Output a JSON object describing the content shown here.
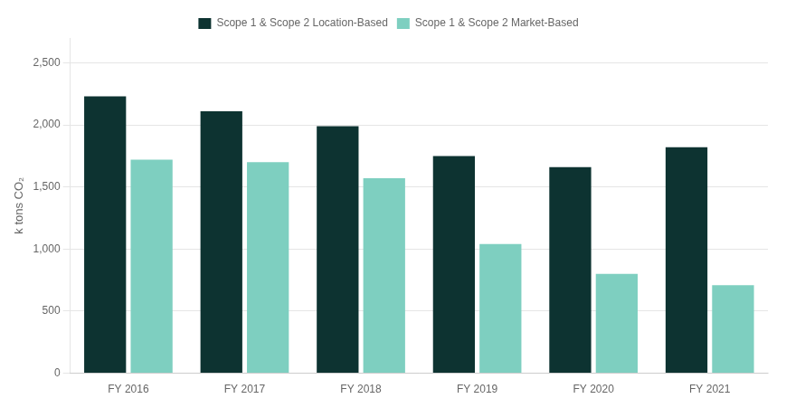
{
  "chart_data": {
    "type": "bar",
    "categories": [
      "FY 2016",
      "FY 2017",
      "FY 2018",
      "FY 2019",
      "FY 2020",
      "FY 2021"
    ],
    "series": [
      {
        "name": "Scope 1 & Scope 2 Location-Based",
        "color": "#0D3331",
        "values": [
          2230,
          2110,
          1990,
          1750,
          1660,
          1820
        ]
      },
      {
        "name": "Scope 1 & Scope 2 Market-Based",
        "color": "#7ECFC0",
        "values": [
          1720,
          1700,
          1570,
          1040,
          800,
          710
        ]
      }
    ],
    "ylabel": "k tons CO₂",
    "ylim": [
      0,
      2700
    ],
    "yticks": [
      0,
      500,
      {
        "value": 1000,
        "label": "1,000"
      },
      {
        "value": 1500,
        "label": "1,500"
      },
      {
        "value": 2000,
        "label": "2,000"
      },
      {
        "value": 2500,
        "label": "2,500"
      }
    ],
    "grid": true,
    "legend": "top"
  }
}
